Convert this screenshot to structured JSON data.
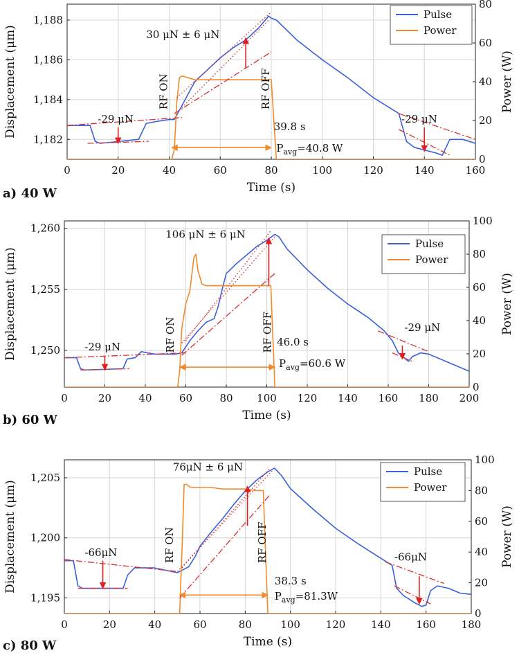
{
  "chart_data": [
    {
      "type": "line",
      "panel_label": "a) 40 W",
      "xlabel": "Time (s)",
      "ylabel_left": "Displacement (μm)",
      "ylabel_right": "Power (W)",
      "xlim": [
        0,
        160
      ],
      "ylim_left": [
        1181,
        1188.8
      ],
      "ylim_right": [
        0,
        80
      ],
      "x_ticks": [
        0,
        20,
        40,
        60,
        80,
        100,
        120,
        140,
        160
      ],
      "x_tick_labels": [
        "0",
        "20",
        "40",
        "60",
        "80",
        "100",
        "120",
        "140",
        "160"
      ],
      "y_ticks_left": [
        1182,
        1184,
        1186,
        1188
      ],
      "y_tick_labels_left": [
        "1,182",
        "1,184",
        "1,186",
        "1,188"
      ],
      "y_ticks_right": [
        0,
        20,
        40,
        60,
        80
      ],
      "y_tick_labels_right": [
        "0",
        "20",
        "40",
        "60",
        "80"
      ],
      "legend": {
        "position": "top-right",
        "entries": [
          "Pulse",
          "Power"
        ]
      },
      "colors": {
        "pulse": "#3a5fe0",
        "power": "#f08a2c",
        "fit": "#d83030",
        "arrow": "#e02020"
      },
      "series": [
        {
          "name": "Pulse",
          "axis": "left",
          "color": "#3a5fe0",
          "x": [
            0,
            9,
            11,
            13,
            28,
            31,
            35,
            40,
            42,
            45,
            50,
            55,
            60,
            65,
            70,
            75,
            79,
            80,
            82,
            90,
            100,
            110,
            120,
            130,
            133,
            136,
            145,
            147,
            150,
            155,
            160
          ],
          "y": [
            1182.7,
            1182.7,
            1181.9,
            1181.8,
            1182.0,
            1182.8,
            1182.9,
            1183.0,
            1183.0,
            1183.7,
            1184.9,
            1185.5,
            1186.1,
            1186.6,
            1187.0,
            1187.6,
            1188.2,
            1188.1,
            1188.0,
            1187.0,
            1186.0,
            1185.1,
            1184.1,
            1183.3,
            1181.9,
            1181.6,
            1181.3,
            1181.2,
            1182.0,
            1182.0,
            1181.8
          ]
        },
        {
          "name": "Power",
          "axis": "right",
          "color": "#f08a2c",
          "x": [
            0,
            41,
            42,
            43,
            44,
            45,
            50,
            60,
            70,
            79,
            80,
            81,
            82,
            160
          ],
          "y": [
            0,
            0,
            5,
            30,
            42,
            43,
            41,
            41,
            41,
            41,
            41,
            20,
            0,
            0
          ]
        }
      ],
      "fit_lines": [
        {
          "x": [
            0,
            45
          ],
          "y": [
            1182.7,
            1183.1
          ],
          "style": "dashdot"
        },
        {
          "x": [
            8,
            32
          ],
          "y": [
            1181.8,
            1181.9
          ],
          "style": "dashdot"
        },
        {
          "x": [
            42,
            80
          ],
          "y": [
            1183.3,
            1186.4
          ],
          "style": "dashdot"
        },
        {
          "x": [
            43,
            80
          ],
          "y": [
            1184.1,
            1188.4
          ],
          "style": "dotted"
        },
        {
          "x": [
            45,
            79
          ],
          "y": [
            1183.6,
            1188.0
          ],
          "style": "dotted"
        },
        {
          "x": [
            130,
            160
          ],
          "y": [
            1183.3,
            1182.0
          ],
          "style": "dashdot"
        },
        {
          "x": [
            130,
            150
          ],
          "y": [
            1182.5,
            1181.2
          ],
          "style": "dashdot"
        }
      ],
      "arrows": [
        {
          "x": 20,
          "y_from": 1182.6,
          "y_to": 1181.8
        },
        {
          "x": 70,
          "y_from": 1185.6,
          "y_to": 1187.1
        },
        {
          "x": 140,
          "y_from": 1182.6,
          "y_to": 1181.4
        }
      ],
      "power_arrow": {
        "x_from": 41,
        "x_to": 80,
        "y": 6
      },
      "annotations": [
        {
          "text": "-29 μN",
          "x": 12,
          "y": 1182.85
        },
        {
          "text": "30 μN ± 6 μN",
          "x": 31,
          "y": 1187.1
        },
        {
          "text": "-29 μN",
          "x": 131,
          "y": 1182.85
        },
        {
          "text": "39.8 s",
          "x": 81,
          "y": 15,
          "axis": "right"
        },
        {
          "text": "RF ON",
          "x": 40,
          "y": 1183.5,
          "rotate": true
        },
        {
          "text": "RF OFF",
          "x": 80,
          "y": 1183.5,
          "rotate": true
        }
      ],
      "pavg": {
        "main": "P",
        "sub": "avg",
        "rest": "=40.8 W",
        "x": 82,
        "y": 4,
        "axis": "right"
      }
    },
    {
      "type": "line",
      "panel_label": "b) 60 W",
      "xlabel": "Time (s)",
      "ylabel_left": "Displacement (μm)",
      "ylabel_right": "Power (W)",
      "xlim": [
        0,
        200
      ],
      "ylim_left": [
        1247,
        1260.6
      ],
      "ylim_right": [
        0,
        100
      ],
      "x_ticks": [
        0,
        20,
        40,
        60,
        80,
        100,
        120,
        140,
        160,
        180,
        200
      ],
      "x_tick_labels": [
        "0",
        "20",
        "40",
        "60",
        "80",
        "100",
        "120",
        "140",
        "160",
        "180",
        "200"
      ],
      "y_ticks_left": [
        1250,
        1255,
        1260
      ],
      "y_tick_labels_left": [
        "1,250",
        "1,255",
        "1,260"
      ],
      "y_ticks_right": [
        0,
        20,
        40,
        60,
        80,
        100
      ],
      "y_tick_labels_right": [
        "0",
        "20",
        "40",
        "60",
        "80",
        "100"
      ],
      "legend": {
        "position": "top-right",
        "entries": [
          "Pulse",
          "Power"
        ]
      },
      "colors": {
        "pulse": "#3a5fe0",
        "power": "#f08a2c",
        "fit": "#d83030",
        "arrow": "#e02020"
      },
      "series": [
        {
          "name": "Pulse",
          "axis": "left",
          "color": "#3a5fe0",
          "x": [
            0,
            6,
            8,
            10,
            29,
            31,
            35,
            38,
            41,
            45,
            55,
            58,
            62,
            66,
            70,
            74,
            76,
            78,
            80,
            85,
            90,
            95,
            100,
            104,
            106,
            110,
            120,
            130,
            140,
            150,
            158,
            162,
            165,
            170,
            172,
            176,
            180,
            190,
            200
          ],
          "y": [
            1249.4,
            1249.4,
            1248.5,
            1248.4,
            1248.5,
            1249.3,
            1249.4,
            1249.9,
            1249.8,
            1249.7,
            1249.7,
            1249.8,
            1250.8,
            1251.6,
            1252.3,
            1252.6,
            1253.6,
            1255.0,
            1256.3,
            1257.1,
            1257.8,
            1258.5,
            1259.0,
            1259.5,
            1259.3,
            1258.3,
            1256.6,
            1255.1,
            1253.8,
            1252.7,
            1251.6,
            1250.8,
            1249.8,
            1249.1,
            1249.5,
            1249.8,
            1249.7,
            1249.0,
            1248.3
          ]
        },
        {
          "name": "Power",
          "axis": "right",
          "color": "#f08a2c",
          "x": [
            0,
            56,
            57,
            58,
            60,
            62,
            64,
            65,
            66,
            68,
            70,
            75,
            80,
            90,
            100,
            102,
            103,
            104,
            200
          ],
          "y": [
            0,
            0,
            10,
            35,
            50,
            58,
            78,
            80,
            70,
            62,
            61,
            61,
            61,
            61,
            61,
            61,
            30,
            0,
            0
          ]
        }
      ],
      "fit_lines": [
        {
          "x": [
            0,
            60
          ],
          "y": [
            1249.4,
            1249.8
          ],
          "style": "dashdot"
        },
        {
          "x": [
            8,
            32
          ],
          "y": [
            1248.4,
            1248.5
          ],
          "style": "dashdot"
        },
        {
          "x": [
            58,
            104
          ],
          "y": [
            1249.6,
            1256.3
          ],
          "style": "dashdot"
        },
        {
          "x": [
            58,
            104
          ],
          "y": [
            1250.6,
            1259.3
          ],
          "style": "dotted"
        },
        {
          "x": [
            60,
            102
          ],
          "y": [
            1250.8,
            1259.8
          ],
          "style": "dotted"
        },
        {
          "x": [
            155,
            180
          ],
          "y": [
            1251.6,
            1249.9
          ],
          "style": "dashdot"
        },
        {
          "x": [
            162,
            172
          ],
          "y": [
            1249.8,
            1249.1
          ],
          "style": "dashdot"
        }
      ],
      "arrows": [
        {
          "x": 20,
          "y_from": 1249.5,
          "y_to": 1248.4
        },
        {
          "x": 101,
          "y_from": 1255.3,
          "y_to": 1259.2
        },
        {
          "x": 167,
          "y_from": 1250.4,
          "y_to": 1249.3
        }
      ],
      "power_arrow": {
        "x_from": 57,
        "x_to": 104,
        "y": 12
      },
      "annotations": [
        {
          "text": "-29 μN",
          "x": 10,
          "y": 1250.0
        },
        {
          "text": "106 μN ± 6 μN",
          "x": 50,
          "y": 1259.2
        },
        {
          "text": "-29 μN",
          "x": 168,
          "y": 1251.6
        },
        {
          "text": "46.0 s",
          "x": 105,
          "y": 25,
          "axis": "right"
        },
        {
          "text": "RF ON",
          "x": 55,
          "y": 1249.8,
          "rotate": true
        },
        {
          "text": "RF OFF",
          "x": 103,
          "y": 1249.8,
          "rotate": true
        }
      ],
      "pavg": {
        "main": "P",
        "sub": "avg",
        "rest": "=60.6 W",
        "x": 106,
        "y": 12,
        "axis": "right"
      }
    },
    {
      "type": "line",
      "panel_label": "c) 80 W",
      "xlabel": "Time (s)",
      "ylabel_left": "Displacement (μm)",
      "ylabel_right": "Power (W)",
      "xlim": [
        0,
        180
      ],
      "ylim_left": [
        1193.7,
        1206.5
      ],
      "ylim_right": [
        0,
        100
      ],
      "x_ticks": [
        0,
        20,
        40,
        60,
        80,
        100,
        120,
        140,
        160,
        180
      ],
      "x_tick_labels": [
        "0",
        "20",
        "40",
        "60",
        "80",
        "100",
        "120",
        "140",
        "160",
        "180"
      ],
      "y_ticks_left": [
        1195,
        1200,
        1205
      ],
      "y_tick_labels_left": [
        "1,195",
        "1,200",
        "1,205"
      ],
      "y_ticks_right": [
        0,
        20,
        40,
        60,
        80,
        100
      ],
      "y_tick_labels_right": [
        "0",
        "20",
        "40",
        "60",
        "80",
        "100"
      ],
      "legend": {
        "position": "top-right",
        "entries": [
          "Pulse",
          "Power"
        ]
      },
      "colors": {
        "pulse": "#3a5fe0",
        "power": "#f08a2c",
        "fit": "#d83030",
        "arrow": "#e02020"
      },
      "series": [
        {
          "name": "Pulse",
          "axis": "left",
          "color": "#3a5fe0",
          "x": [
            0,
            4,
            6,
            8,
            26,
            28,
            31,
            34,
            40,
            45,
            50,
            52,
            55,
            58,
            60,
            65,
            70,
            75,
            80,
            85,
            90,
            93,
            96,
            100,
            110,
            120,
            130,
            140,
            145,
            147,
            150,
            155,
            158,
            160,
            162,
            165,
            170,
            175,
            180
          ],
          "y": [
            1198.1,
            1198.1,
            1196.0,
            1195.8,
            1195.8,
            1196.9,
            1197.5,
            1197.5,
            1197.5,
            1197.3,
            1197.1,
            1197.3,
            1197.6,
            1198.5,
            1199.3,
            1200.5,
            1201.6,
            1202.8,
            1203.9,
            1204.8,
            1205.5,
            1205.8,
            1205.2,
            1204.1,
            1202.4,
            1200.8,
            1199.5,
            1198.3,
            1197.7,
            1195.8,
            1195.2,
            1194.6,
            1194.3,
            1194.4,
            1195.6,
            1196.0,
            1195.8,
            1195.4,
            1195.3
          ]
        },
        {
          "name": "Power",
          "axis": "right",
          "color": "#f08a2c",
          "x": [
            0,
            51,
            52,
            53,
            54,
            56,
            60,
            65,
            70,
            75,
            80,
            85,
            88,
            89,
            90,
            180
          ],
          "y": [
            0,
            0,
            40,
            84,
            84,
            82,
            82,
            82,
            81,
            81,
            81,
            80,
            80,
            40,
            0,
            0
          ]
        }
      ],
      "fit_lines": [
        {
          "x": [
            0,
            50
          ],
          "y": [
            1198.2,
            1197.2
          ],
          "style": "dashdot"
        },
        {
          "x": [
            6,
            28
          ],
          "y": [
            1195.8,
            1195.8
          ],
          "style": "dashdot"
        },
        {
          "x": [
            51,
            91
          ],
          "y": [
            1195.0,
            1203.6
          ],
          "style": "dashdot"
        },
        {
          "x": [
            50,
            92
          ],
          "y": [
            1197.2,
            1205.6
          ],
          "style": "dotted"
        },
        {
          "x": [
            52,
            91
          ],
          "y": [
            1197.5,
            1205.8
          ],
          "style": "dotted"
        },
        {
          "x": [
            142,
            168
          ],
          "y": [
            1198.0,
            1196.2
          ],
          "style": "dashdot"
        },
        {
          "x": [
            146,
            162
          ],
          "y": [
            1196.0,
            1194.5
          ],
          "style": "dashdot"
        }
      ],
      "arrows": [
        {
          "x": 17,
          "y_from": 1198.1,
          "y_to": 1195.8
        },
        {
          "x": 81,
          "y_from": 1201.0,
          "y_to": 1204.3
        },
        {
          "x": 157,
          "y_from": 1196.8,
          "y_to": 1194.5
        }
      ],
      "power_arrow": {
        "x_from": 51,
        "x_to": 90,
        "y": 12
      },
      "annotations": [
        {
          "text": "-66μN",
          "x": 9,
          "y": 1198.5
        },
        {
          "text": "76μN ± 6 μN",
          "x": 48,
          "y": 1205.6
        },
        {
          "text": "-66μN",
          "x": 146,
          "y": 1198.1
        },
        {
          "text": "38.3 s",
          "x": 93,
          "y": 19,
          "axis": "right"
        },
        {
          "text": "RF ON",
          "x": 49,
          "y": 1197.9,
          "rotate": true
        },
        {
          "text": "RF OFF",
          "x": 90,
          "y": 1197.9,
          "rotate": true
        }
      ],
      "pavg": {
        "main": "P",
        "sub": "avg",
        "rest": "=81.3W",
        "x": 93,
        "y": 9,
        "axis": "right"
      }
    }
  ]
}
